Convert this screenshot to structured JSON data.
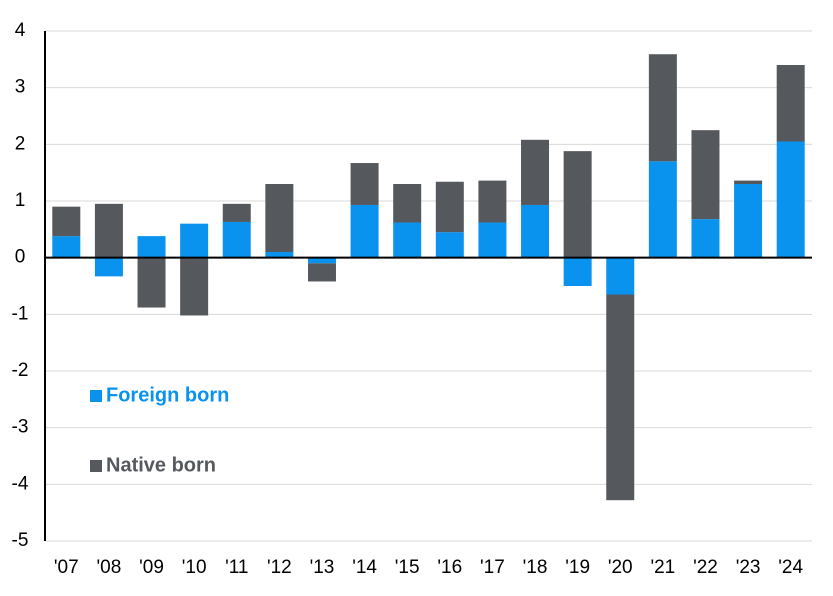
{
  "chart_data": {
    "type": "bar",
    "stacked": true,
    "categories": [
      "'07",
      "'08",
      "'09",
      "'10",
      "'11",
      "'12",
      "'13",
      "'14",
      "'15",
      "'16",
      "'17",
      "'18",
      "'19",
      "'20",
      "'21",
      "'22",
      "'23",
      "'24"
    ],
    "series": [
      {
        "name": "Foreign born",
        "color": "#0a93ee",
        "values": [
          0.38,
          -0.33,
          0.38,
          0.6,
          0.63,
          0.1,
          -0.1,
          0.93,
          0.62,
          0.45,
          0.62,
          0.93,
          -0.5,
          -0.65,
          1.7,
          0.68,
          1.3,
          2.05
        ]
      },
      {
        "name": "Native born",
        "color": "#55595d",
        "values": [
          0.52,
          0.95,
          -0.88,
          -1.02,
          0.32,
          1.2,
          -0.32,
          0.74,
          0.68,
          0.89,
          0.74,
          1.15,
          1.88,
          -3.63,
          1.89,
          1.57,
          0.06,
          1.35
        ]
      }
    ],
    "ylim": [
      -5,
      4
    ],
    "yticks": [
      -5,
      -4,
      -3,
      -2,
      -1,
      0,
      1,
      2,
      3,
      4
    ],
    "grid": true,
    "legend": "left"
  }
}
